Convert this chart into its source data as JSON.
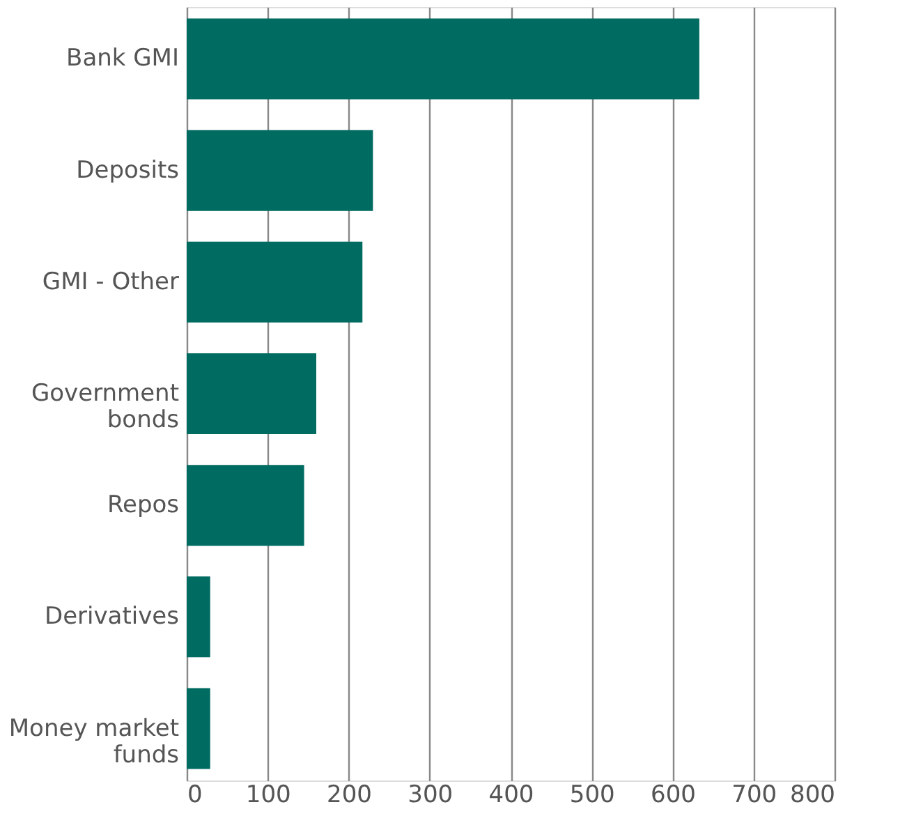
{
  "chart_data": {
    "type": "bar",
    "orientation": "horizontal",
    "categories": [
      "Bank GMI",
      "Deposits",
      "GMI - Other",
      "Government bonds",
      "Repos",
      "Derivatives",
      "Money market funds"
    ],
    "values": [
      633,
      230,
      217,
      160,
      145,
      29,
      29
    ],
    "color": "#006b60",
    "xlim": [
      0,
      800
    ],
    "xticks": [
      0,
      100,
      200,
      300,
      400,
      500,
      600,
      700,
      800
    ],
    "grid": "x"
  }
}
